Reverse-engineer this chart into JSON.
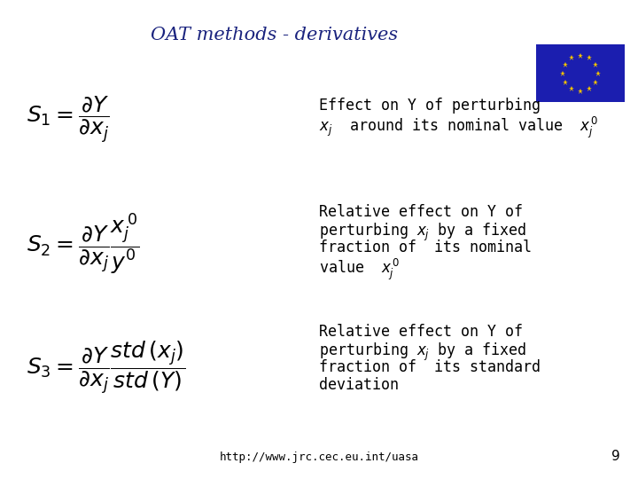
{
  "title": "OAT methods - derivatives",
  "title_color": "#1A237E",
  "title_fontsize": 15,
  "bg_color": "#FFFFFF",
  "formula1": "$S_1 = \\dfrac{\\partial Y}{\\partial x_j}$",
  "formula2": "$S_2 = \\dfrac{\\partial Y}{\\partial x_j} \\dfrac{x_j^{\\,0}}{y^0}$",
  "formula3": "$S_3 = \\dfrac{\\partial Y}{\\partial x_j} \\dfrac{\\mathit{std}\\,(x_j)}{\\mathit{std}\\,(Y)}$",
  "desc1_line1": "Effect on Y of perturbing",
  "desc1_line2": "$x_j$  around its nominal value  $x_j^{\\,0}$",
  "desc2_line1": "Relative effect on Y of",
  "desc2_line2": "perturbing $x_j$ by a fixed",
  "desc2_line3": "fraction of  its nominal",
  "desc2_line4": "value  $x_j^{\\,0}$",
  "desc3_line1": "Relative effect on Y of",
  "desc3_line2": "perturbing $x_j$ by a fixed",
  "desc3_line3": "fraction of  its standard",
  "desc3_line4": "deviation",
  "footer_url": "http://www.jrc.cec.eu.int/uasa",
  "footer_page": "9",
  "flag_color": "#1B1EAF",
  "star_color": "#F0C000",
  "text_color": "#000000",
  "desc_fontsize": 12
}
